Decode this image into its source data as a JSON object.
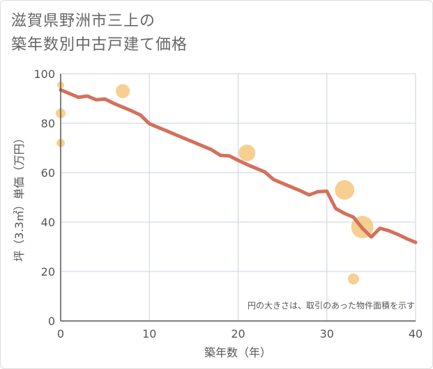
{
  "chart_data": {
    "type": "line",
    "title": [
      "滋賀県野洲市三上の",
      "築年数別中古戸建て価格"
    ],
    "xlabel": "築年数（年）",
    "ylabel": "坪（3.3㎡）単価（万円）",
    "xlim": [
      0,
      40
    ],
    "ylim": [
      0,
      100
    ],
    "xticks": [
      0,
      10,
      20,
      30,
      40
    ],
    "yticks": [
      0,
      20,
      40,
      60,
      80,
      100
    ],
    "grid": true,
    "note": "円の大きさは、取引のあった物件面積を示す",
    "colors": {
      "line": "#d4705c",
      "bubble": "#f5c77e",
      "grid": "#c8d2dc",
      "axis": "#555555"
    },
    "series": [
      {
        "x": [
          0,
          1,
          2,
          3,
          4,
          5,
          6,
          7,
          8,
          9,
          10,
          11,
          12,
          13,
          14,
          15,
          16,
          17,
          18,
          19,
          20,
          21,
          22,
          23,
          24,
          25,
          26,
          27,
          28,
          29,
          30,
          31,
          32,
          33,
          34,
          35,
          36,
          37,
          38,
          39,
          40
        ],
        "values": [
          93.5,
          92,
          90.5,
          91,
          89.5,
          89.8,
          88,
          86.5,
          85,
          83.3,
          79.8,
          78.3,
          76.8,
          75.3,
          73.8,
          72.3,
          70.8,
          69.3,
          67,
          66.8,
          65,
          63.3,
          61.8,
          60.3,
          57.2,
          55.7,
          54.2,
          52.7,
          51,
          52.3,
          52.5,
          45.5,
          43.5,
          42,
          37.5,
          34,
          37.5,
          36.5,
          35,
          33.3,
          31.8
        ]
      }
    ],
    "bubbles": [
      {
        "x": 0,
        "y": 95.5,
        "r": 5
      },
      {
        "x": 0,
        "y": 84,
        "r": 7
      },
      {
        "x": 0,
        "y": 72,
        "r": 6
      },
      {
        "x": 7,
        "y": 93,
        "r": 10
      },
      {
        "x": 21,
        "y": 68,
        "r": 12
      },
      {
        "x": 32,
        "y": 53,
        "r": 14
      },
      {
        "x": 33,
        "y": 17,
        "r": 8
      },
      {
        "x": 34,
        "y": 38,
        "r": 16
      }
    ]
  }
}
